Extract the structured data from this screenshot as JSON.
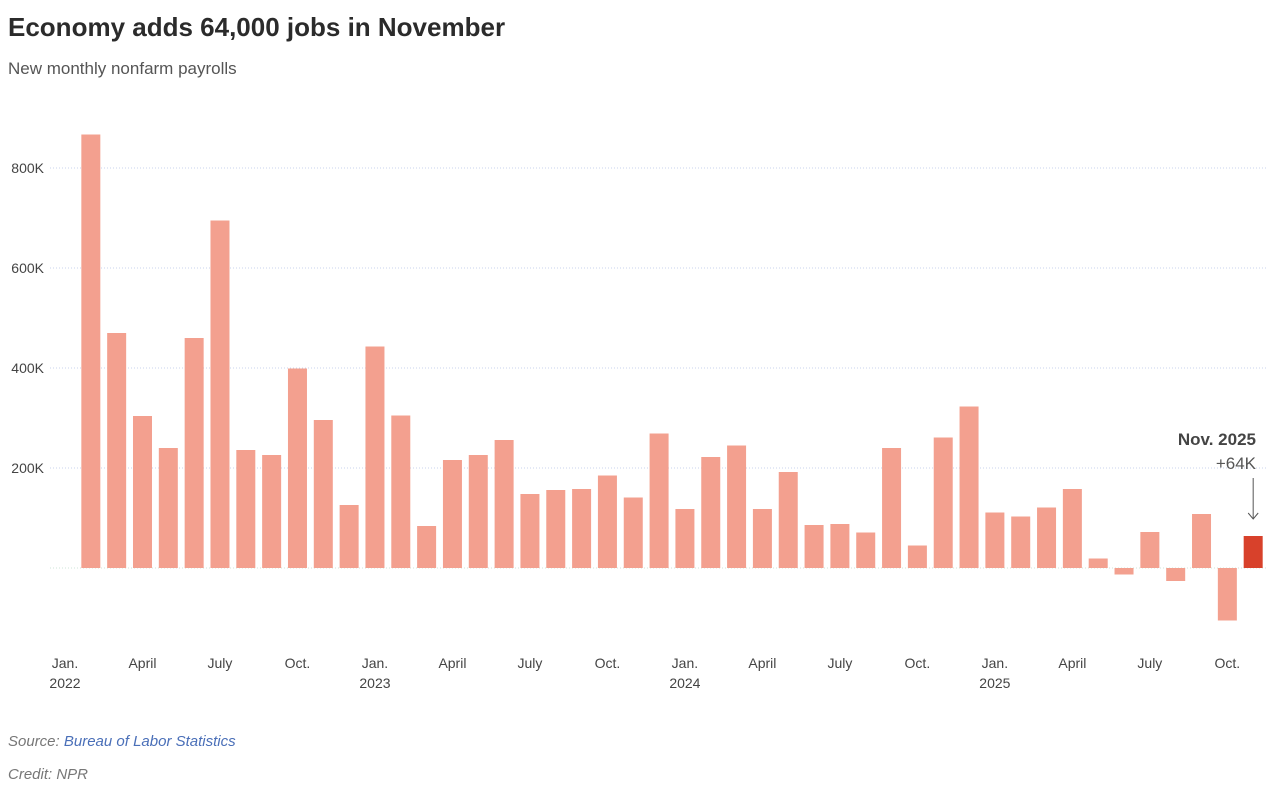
{
  "chart_data": {
    "type": "bar",
    "title": "Economy adds 64,000 jobs in November",
    "subtitle": "New monthly nonfarm payrolls",
    "xlabel": "",
    "ylabel": "",
    "ylim": [
      -160,
      900
    ],
    "grid": true,
    "unit": "thousands of jobs",
    "yticks": [
      {
        "value": 200,
        "label": "200K"
      },
      {
        "value": 400,
        "label": "400K"
      },
      {
        "value": 600,
        "label": "600K"
      },
      {
        "value": 800,
        "label": "800K"
      }
    ],
    "first_month": "2022-02",
    "months": [
      "Feb 2022",
      "Mar 2022",
      "Apr 2022",
      "May 2022",
      "Jun 2022",
      "Jul 2022",
      "Aug 2022",
      "Sep 2022",
      "Oct 2022",
      "Nov 2022",
      "Dec 2022",
      "Jan 2023",
      "Feb 2023",
      "Mar 2023",
      "Apr 2023",
      "May 2023",
      "Jun 2023",
      "Jul 2023",
      "Aug 2023",
      "Sep 2023",
      "Oct 2023",
      "Nov 2023",
      "Dec 2023",
      "Jan 2024",
      "Feb 2024",
      "Mar 2024",
      "Apr 2024",
      "May 2024",
      "Jun 2024",
      "Jul 2024",
      "Aug 2024",
      "Sep 2024",
      "Oct 2024",
      "Nov 2024",
      "Dec 2024",
      "Jan 2025",
      "Feb 2025",
      "Mar 2025",
      "Apr 2025",
      "May 2025",
      "Jun 2025",
      "Jul 2025",
      "Aug 2025",
      "Sep 2025",
      "Oct 2025",
      "Nov 2025"
    ],
    "values": [
      867,
      470,
      304,
      240,
      460,
      695,
      236,
      226,
      399,
      296,
      126,
      443,
      305,
      84,
      216,
      226,
      256,
      148,
      156,
      158,
      185,
      141,
      269,
      118,
      222,
      245,
      118,
      192,
      86,
      88,
      71,
      240,
      45,
      261,
      323,
      111,
      103,
      121,
      158,
      19,
      -13,
      72,
      -26,
      108,
      -105,
      64
    ],
    "highlight_index": 45,
    "xticks": [
      {
        "month_offset": 0,
        "label": "Jan.",
        "year": "2022"
      },
      {
        "month_offset": 3,
        "label": "April",
        "year": ""
      },
      {
        "month_offset": 6,
        "label": "July",
        "year": ""
      },
      {
        "month_offset": 9,
        "label": "Oct.",
        "year": ""
      },
      {
        "month_offset": 12,
        "label": "Jan.",
        "year": "2023"
      },
      {
        "month_offset": 15,
        "label": "April",
        "year": ""
      },
      {
        "month_offset": 18,
        "label": "July",
        "year": ""
      },
      {
        "month_offset": 21,
        "label": "Oct.",
        "year": ""
      },
      {
        "month_offset": 24,
        "label": "Jan.",
        "year": "2024"
      },
      {
        "month_offset": 27,
        "label": "April",
        "year": ""
      },
      {
        "month_offset": 30,
        "label": "July",
        "year": ""
      },
      {
        "month_offset": 33,
        "label": "Oct.",
        "year": ""
      },
      {
        "month_offset": 36,
        "label": "Jan.",
        "year": "2025"
      },
      {
        "month_offset": 39,
        "label": "April",
        "year": ""
      },
      {
        "month_offset": 42,
        "label": "July",
        "year": ""
      },
      {
        "month_offset": 45,
        "label": "Oct.",
        "year": ""
      }
    ],
    "annotation": {
      "title": "Nov. 2025",
      "value": "+64K"
    },
    "colors": {
      "bar": "#f3a08f",
      "highlight": "#d8412b",
      "grid": "#c9d3ee",
      "text": "#444444"
    }
  },
  "footer": {
    "source_prefix": "Source: ",
    "source_link": "Bureau of Labor Statistics",
    "credit": "Credit: NPR"
  }
}
